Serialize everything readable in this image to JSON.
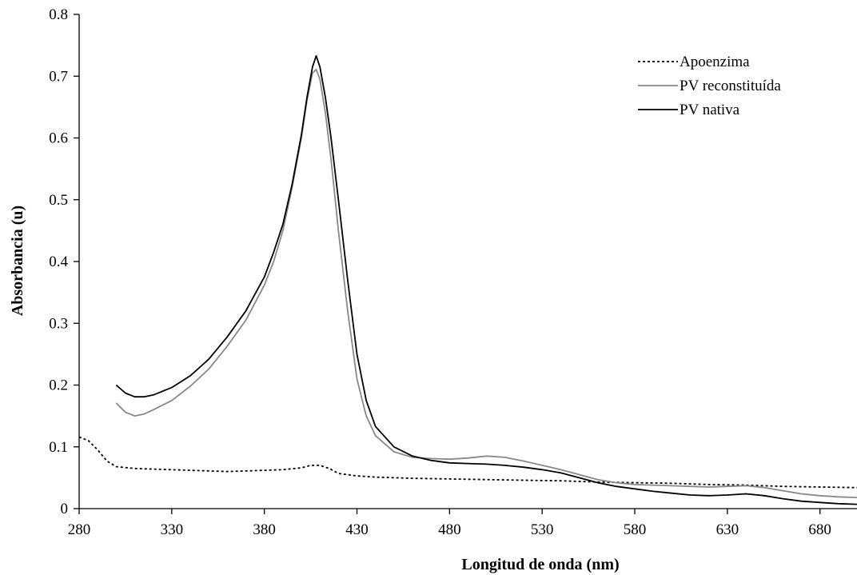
{
  "chart_data": {
    "type": "line",
    "title": "",
    "xlabel": "Longitud de onda (nm)",
    "ylabel": "Absorbancia (u)",
    "xlim": [
      280,
      700
    ],
    "ylim": [
      0,
      0.8
    ],
    "x_ticks": [
      280,
      330,
      380,
      430,
      480,
      530,
      580,
      630,
      680
    ],
    "x_tick_labels": [
      "280",
      "330",
      "380",
      "430",
      "480",
      "530",
      "580",
      "630",
      "680"
    ],
    "y_ticks": [
      0,
      0.1,
      0.2,
      0.3,
      0.4,
      0.5,
      0.6,
      0.7,
      0.8
    ],
    "y_tick_labels": [
      "0",
      "0.1",
      "0.2",
      "0.3",
      "0.4",
      "0.5",
      "0.6",
      "0.7",
      "0.8"
    ],
    "grid": false,
    "legend_position": "top-right",
    "series": [
      {
        "name": "Apoenzima",
        "color": "#000000",
        "dash": "dotted",
        "x": [
          280,
          285,
          290,
          295,
          300,
          310,
          320,
          330,
          340,
          350,
          360,
          370,
          380,
          390,
          400,
          405,
          410,
          415,
          420,
          430,
          440,
          460,
          480,
          500,
          520,
          540,
          560,
          580,
          600,
          620,
          640,
          660,
          680,
          700
        ],
        "y": [
          0.116,
          0.11,
          0.095,
          0.077,
          0.068,
          0.065,
          0.064,
          0.063,
          0.062,
          0.061,
          0.06,
          0.061,
          0.062,
          0.063,
          0.066,
          0.07,
          0.07,
          0.065,
          0.057,
          0.053,
          0.051,
          0.049,
          0.048,
          0.047,
          0.046,
          0.045,
          0.043,
          0.042,
          0.041,
          0.039,
          0.038,
          0.036,
          0.035,
          0.034
        ]
      },
      {
        "name": "PV reconstituída",
        "color": "#888888",
        "dash": "solid",
        "x": [
          300,
          305,
          310,
          315,
          320,
          330,
          340,
          350,
          360,
          370,
          380,
          385,
          390,
          395,
          400,
          403,
          406,
          408,
          410,
          413,
          416,
          420,
          425,
          430,
          435,
          440,
          450,
          460,
          470,
          480,
          490,
          500,
          510,
          520,
          530,
          540,
          550,
          560,
          570,
          580,
          590,
          600,
          610,
          620,
          630,
          640,
          650,
          660,
          670,
          680,
          690,
          700
        ],
        "y": [
          0.171,
          0.156,
          0.15,
          0.153,
          0.16,
          0.175,
          0.198,
          0.226,
          0.263,
          0.305,
          0.362,
          0.4,
          0.45,
          0.52,
          0.6,
          0.66,
          0.705,
          0.711,
          0.695,
          0.64,
          0.565,
          0.45,
          0.32,
          0.21,
          0.15,
          0.118,
          0.092,
          0.083,
          0.081,
          0.08,
          0.082,
          0.085,
          0.083,
          0.077,
          0.07,
          0.063,
          0.055,
          0.047,
          0.042,
          0.039,
          0.038,
          0.037,
          0.036,
          0.035,
          0.036,
          0.037,
          0.034,
          0.029,
          0.024,
          0.021,
          0.019,
          0.018
        ]
      },
      {
        "name": "PV nativa",
        "color": "#000000",
        "dash": "solid",
        "x": [
          300,
          305,
          310,
          315,
          320,
          330,
          340,
          350,
          360,
          370,
          380,
          385,
          390,
          395,
          400,
          403,
          406,
          408,
          410,
          413,
          416,
          420,
          425,
          430,
          435,
          440,
          450,
          460,
          470,
          480,
          490,
          500,
          510,
          520,
          530,
          540,
          550,
          560,
          570,
          580,
          590,
          600,
          610,
          620,
          630,
          640,
          650,
          660,
          670,
          680,
          690,
          700
        ],
        "y": [
          0.2,
          0.187,
          0.181,
          0.181,
          0.184,
          0.196,
          0.215,
          0.242,
          0.278,
          0.32,
          0.375,
          0.415,
          0.46,
          0.525,
          0.605,
          0.665,
          0.715,
          0.733,
          0.715,
          0.665,
          0.6,
          0.5,
          0.37,
          0.25,
          0.175,
          0.133,
          0.1,
          0.085,
          0.078,
          0.074,
          0.073,
          0.072,
          0.07,
          0.067,
          0.063,
          0.058,
          0.05,
          0.042,
          0.036,
          0.032,
          0.028,
          0.025,
          0.022,
          0.021,
          0.022,
          0.024,
          0.021,
          0.016,
          0.012,
          0.01,
          0.008,
          0.007
        ]
      }
    ]
  }
}
